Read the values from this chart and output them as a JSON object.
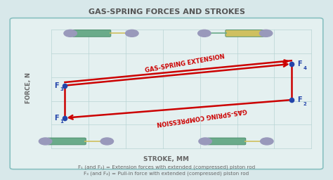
{
  "title": "GAS-SPRING FORCES AND STROKES",
  "title_color": "#555555",
  "background_outer": "#d8e8ea",
  "background_inner": "#e4f0f0",
  "grid_color": "#b8d4d4",
  "border_color": "#88c0c0",
  "ylabel": "FORCE, N",
  "xlabel": "STROKE, MM",
  "label_color": "#666666",
  "point_color": "#2244aa",
  "point_size": 4.5,
  "arrow_color": "#cc0000",
  "arrow_lw": 1.8,
  "extension_label": "GAS-SPRING EXTENSION",
  "compression_label": "GAS-SPRING COMPRESSION",
  "label_font_size": 6.0,
  "footnote_line1": "F₁ (and F₂) = Extension forces with extended (compressed) piston rod",
  "footnote_line2": "F₃ (and F₄) = Pull-in force with extended (compressed) piston rod",
  "footnote_color": "#666666",
  "footnote_size": 5.2,
  "spring_green": "#6aab8a",
  "spring_dark_green": "#448866",
  "spring_yellow": "#cfc060",
  "spring_end_blue": "#9999bb",
  "spring_end_green": "#77bb99",
  "px": {
    "F1": 0.195,
    "F2": 0.875,
    "F3": 0.195,
    "F4": 0.875
  },
  "py": {
    "F1": 0.345,
    "F2": 0.445,
    "F3": 0.525,
    "F4": 0.645
  },
  "fig_width": 4.74,
  "fig_height": 2.56,
  "dpi": 100
}
